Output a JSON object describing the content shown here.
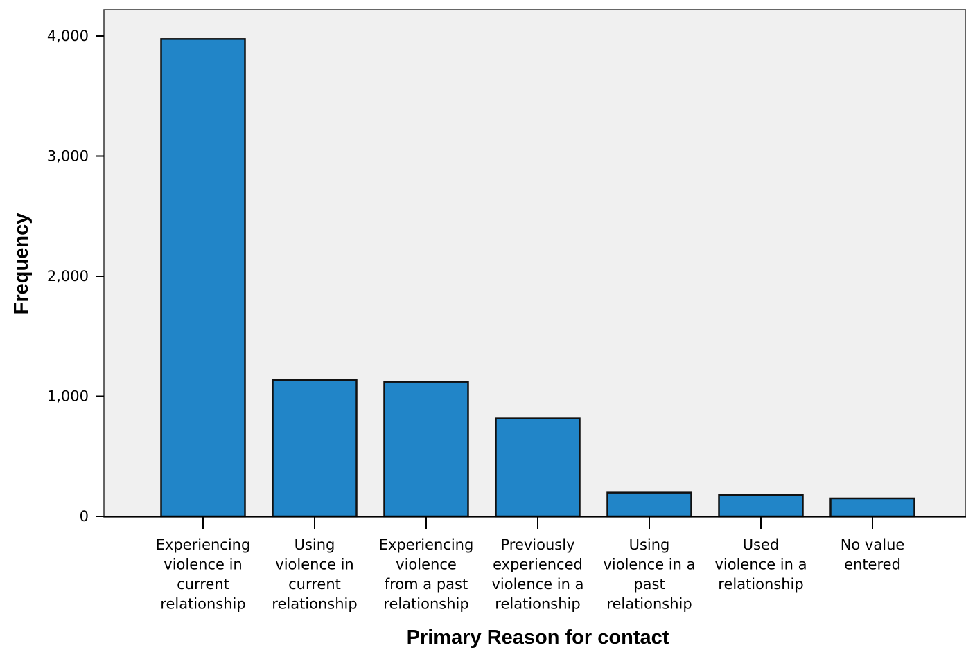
{
  "chart_data": {
    "type": "bar",
    "title": "",
    "xlabel": "Primary Reason for contact",
    "ylabel": "Frequency",
    "ylim": [
      0,
      4200
    ],
    "yticks": [
      0,
      1000,
      2000,
      3000,
      4000
    ],
    "ytick_labels": [
      "0",
      "1,000",
      "2,000",
      "3,000",
      "4,000"
    ],
    "grid": false,
    "legend": "none",
    "bar_color": "#2185C8",
    "background_color": "#F0F0F0",
    "categories": [
      "Experiencing violence in current relationship",
      "Using violence in current relationship",
      "Experiencing violence from a past relationship",
      "Previously experienced violence in a relationship",
      "Using violence in a past relationship",
      "Used violence in a relationship",
      "No value entered"
    ],
    "category_lines": [
      [
        "Experiencing",
        "violence in",
        "current",
        "relationship"
      ],
      [
        "Using",
        "violence in",
        "current",
        "relationship"
      ],
      [
        "Experiencing",
        "violence",
        "from a past",
        "relationship"
      ],
      [
        "Previously",
        "experienced",
        "violence in a",
        "relationship"
      ],
      [
        "Using",
        "violence in a",
        "past",
        "relationship"
      ],
      [
        "Used",
        "violence in a",
        "relationship"
      ],
      [
        "No value",
        "entered"
      ]
    ],
    "values": [
      3975,
      1135,
      1120,
      815,
      198,
      180,
      150
    ]
  }
}
